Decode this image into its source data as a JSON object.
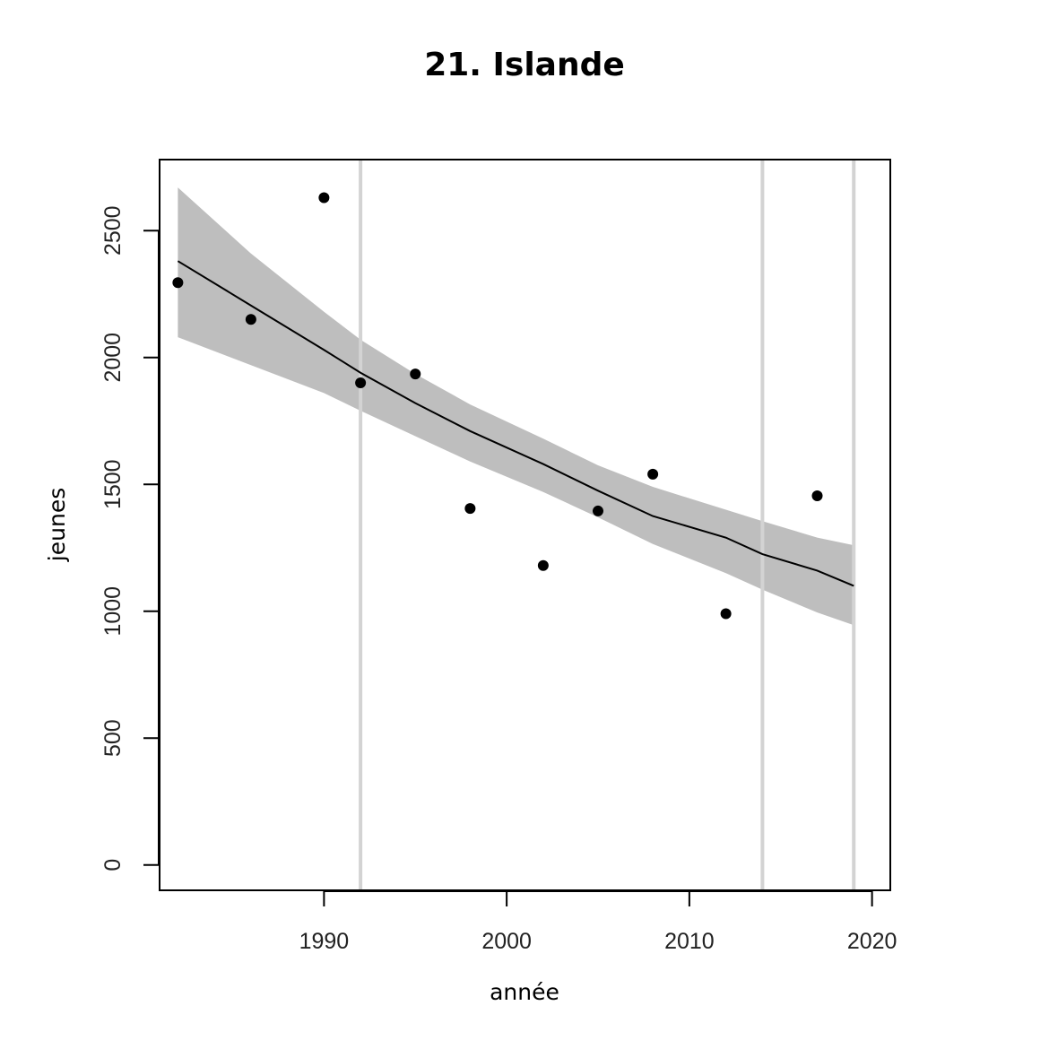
{
  "chart_data": {
    "type": "scatter",
    "title": "21. Islande",
    "xlabel": "année",
    "ylabel": "jeunes",
    "xlim": [
      1981,
      2021
    ],
    "ylim": [
      -100,
      2780
    ],
    "x_ticks": [
      1990,
      2000,
      2010,
      2020
    ],
    "y_ticks": [
      0,
      500,
      1000,
      1500,
      2000,
      2500
    ],
    "vertical_lines": [
      1992,
      2014,
      2019
    ],
    "points": [
      {
        "x": 1982,
        "y": 2295
      },
      {
        "x": 1986,
        "y": 2150
      },
      {
        "x": 1990,
        "y": 2630
      },
      {
        "x": 1992,
        "y": 1900
      },
      {
        "x": 1995,
        "y": 1935
      },
      {
        "x": 1998,
        "y": 1405
      },
      {
        "x": 2002,
        "y": 1180
      },
      {
        "x": 2005,
        "y": 1395
      },
      {
        "x": 2008,
        "y": 1540
      },
      {
        "x": 2012,
        "y": 990
      },
      {
        "x": 2017,
        "y": 1455
      }
    ],
    "trend": [
      {
        "x": 1982,
        "y": 2380
      },
      {
        "x": 1986,
        "y": 2205
      },
      {
        "x": 1990,
        "y": 2030
      },
      {
        "x": 1992,
        "y": 1940
      },
      {
        "x": 1995,
        "y": 1820
      },
      {
        "x": 1998,
        "y": 1710
      },
      {
        "x": 2002,
        "y": 1580
      },
      {
        "x": 2005,
        "y": 1475
      },
      {
        "x": 2008,
        "y": 1375
      },
      {
        "x": 2012,
        "y": 1290
      },
      {
        "x": 2014,
        "y": 1225
      },
      {
        "x": 2017,
        "y": 1160
      },
      {
        "x": 2019,
        "y": 1100
      }
    ],
    "band_upper": [
      {
        "x": 1982,
        "y": 2670
      },
      {
        "x": 1986,
        "y": 2410
      },
      {
        "x": 1990,
        "y": 2180
      },
      {
        "x": 1992,
        "y": 2070
      },
      {
        "x": 1995,
        "y": 1935
      },
      {
        "x": 1998,
        "y": 1815
      },
      {
        "x": 2002,
        "y": 1680
      },
      {
        "x": 2005,
        "y": 1575
      },
      {
        "x": 2008,
        "y": 1490
      },
      {
        "x": 2012,
        "y": 1400
      },
      {
        "x": 2014,
        "y": 1355
      },
      {
        "x": 2017,
        "y": 1290
      },
      {
        "x": 2019,
        "y": 1260
      }
    ],
    "band_lower": [
      {
        "x": 1982,
        "y": 2080
      },
      {
        "x": 1986,
        "y": 1970
      },
      {
        "x": 1990,
        "y": 1860
      },
      {
        "x": 1992,
        "y": 1790
      },
      {
        "x": 1995,
        "y": 1690
      },
      {
        "x": 1998,
        "y": 1590
      },
      {
        "x": 2002,
        "y": 1470
      },
      {
        "x": 2005,
        "y": 1370
      },
      {
        "x": 2008,
        "y": 1265
      },
      {
        "x": 2012,
        "y": 1150
      },
      {
        "x": 2014,
        "y": 1085
      },
      {
        "x": 2017,
        "y": 995
      },
      {
        "x": 2019,
        "y": 945
      }
    ],
    "colors": {
      "band": "#bebebe",
      "vline": "#d3d3d3",
      "points": "#000000",
      "trend": "#000000"
    },
    "grid": false,
    "legend": "none"
  }
}
